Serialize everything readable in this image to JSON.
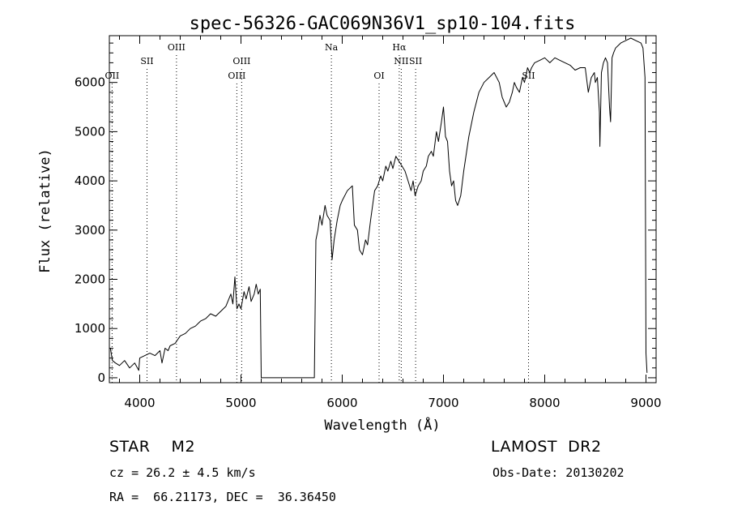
{
  "chart_data": {
    "type": "line",
    "title": "spec-56326-GAC069N36V1_sp10-104.fits",
    "xlabel": "Wavelength (Å)",
    "ylabel": "Flux (relative)",
    "xlim": [
      3700,
      9100
    ],
    "ylim": [
      -100,
      6950
    ],
    "xticks": [
      4000,
      5000,
      6000,
      7000,
      8000,
      9000
    ],
    "yticks": [
      0,
      1000,
      2000,
      3000,
      4000,
      5000,
      6000
    ],
    "grid": false,
    "lines": [
      {
        "label": "OII",
        "x": 3727,
        "row": 3
      },
      {
        "label": "SII",
        "x": 4072,
        "row": 2
      },
      {
        "label": "OIII",
        "x": 4363,
        "row": 1
      },
      {
        "label": "OIII",
        "x": 4959,
        "row": 3
      },
      {
        "label": "OIII",
        "x": 5007,
        "row": 2
      },
      {
        "label": "Na",
        "x": 5893,
        "row": 1
      },
      {
        "label": "OI",
        "x": 6364,
        "row": 3
      },
      {
        "label": "Hα",
        "x": 6563,
        "row": 1
      },
      {
        "label": "NII",
        "x": 6583,
        "row": 2
      },
      {
        "label": "SII",
        "x": 6725,
        "row": 2
      },
      {
        "label": "SII",
        "x": 7840,
        "row": 3
      }
    ],
    "series": [
      {
        "x": [
          3710,
          3730,
          3760,
          3800,
          3850,
          3900,
          3950,
          3990,
          4000,
          4050,
          4100,
          4150,
          4200,
          4220,
          4250,
          4280,
          4300,
          4350,
          4400,
          4450,
          4500,
          4550,
          4600,
          4650,
          4700,
          4750,
          4800,
          4850,
          4900,
          4920,
          4940,
          4960,
          4980,
          5000,
          5030,
          5050,
          5080,
          5100,
          5130,
          5150,
          5170,
          5190,
          5200,
          5250,
          5400,
          5600,
          5680,
          5700,
          5710,
          5725,
          5740,
          5760,
          5780,
          5800,
          5830,
          5850,
          5880,
          5900,
          5920,
          5950,
          5980,
          6000,
          6050,
          6100,
          6120,
          6150,
          6170,
          6200,
          6230,
          6250,
          6280,
          6300,
          6320,
          6350,
          6380,
          6400,
          6430,
          6450,
          6480,
          6500,
          6530,
          6560,
          6590,
          6620,
          6650,
          6680,
          6700,
          6720,
          6750,
          6780,
          6800,
          6830,
          6850,
          6880,
          6900,
          6930,
          6950,
          6980,
          7000,
          7020,
          7040,
          7060,
          7080,
          7100,
          7120,
          7140,
          7170,
          7200,
          7250,
          7300,
          7350,
          7400,
          7450,
          7500,
          7550,
          7580,
          7600,
          7620,
          7650,
          7680,
          7700,
          7720,
          7750,
          7780,
          7800,
          7830,
          7850,
          7870,
          7900,
          7950,
          8000,
          8050,
          8100,
          8150,
          8200,
          8250,
          8300,
          8350,
          8400,
          8430,
          8460,
          8490,
          8500,
          8520,
          8540,
          8545,
          8560,
          8580,
          8600,
          8620,
          8640,
          8650,
          8665,
          8680,
          8700,
          8750,
          8800,
          8850,
          8900,
          8950,
          8970,
          8990,
          9000,
          9010
        ],
        "y": [
          600,
          350,
          300,
          250,
          350,
          200,
          300,
          150,
          400,
          450,
          500,
          450,
          550,
          300,
          600,
          550,
          650,
          700,
          850,
          900,
          1000,
          1050,
          1150,
          1200,
          1300,
          1250,
          1350,
          1450,
          1700,
          1500,
          2050,
          1400,
          1500,
          1400,
          1750,
          1600,
          1850,
          1550,
          1700,
          1900,
          1700,
          1800,
          0,
          0,
          0,
          0,
          0,
          0,
          0,
          0,
          2800,
          3000,
          3300,
          3100,
          3500,
          3300,
          3200,
          2400,
          2800,
          3200,
          3500,
          3600,
          3800,
          3900,
          3100,
          3000,
          2600,
          2500,
          2800,
          2700,
          3200,
          3500,
          3800,
          3900,
          4100,
          4000,
          4300,
          4200,
          4400,
          4250,
          4500,
          4400,
          4300,
          4200,
          4000,
          3800,
          4000,
          3700,
          3900,
          4000,
          4200,
          4300,
          4500,
          4600,
          4500,
          5000,
          4800,
          5200,
          5500,
          4900,
          4800,
          4200,
          3900,
          4000,
          3600,
          3500,
          3700,
          4200,
          4900,
          5400,
          5800,
          6000,
          6100,
          6200,
          6000,
          5700,
          5600,
          5500,
          5600,
          5800,
          6000,
          5900,
          5800,
          6100,
          6000,
          6300,
          6200,
          6300,
          6400,
          6450,
          6500,
          6400,
          6500,
          6450,
          6400,
          6350,
          6250,
          6300,
          6300,
          5800,
          6100,
          6200,
          6000,
          6100,
          5400,
          4700,
          6200,
          6400,
          6500,
          6400,
          5500,
          5200,
          6500,
          6600,
          6700,
          6800,
          6850,
          6900,
          6850,
          6800,
          6700,
          6100,
          500,
          100
        ]
      }
    ]
  },
  "info": {
    "class": "STAR    M2",
    "survey": "LAMOST  DR2",
    "cz": "cz = 26.2 ± 4.5 km/s",
    "obs_date": "Obs-Date: 20130202",
    "radec": "RA =  66.21173, DEC =  36.36450"
  }
}
